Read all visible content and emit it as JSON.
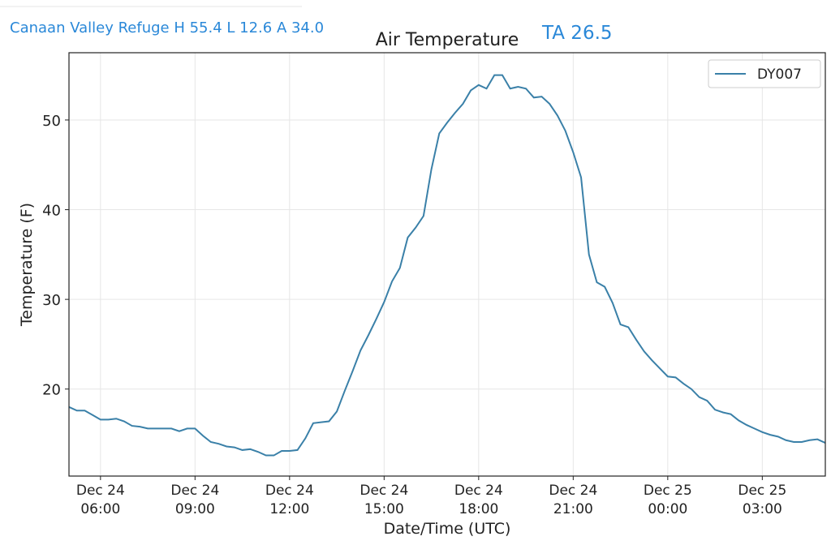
{
  "header": {
    "station": "Canaan Valley Refuge H 55.4 L 12.6 A 34.0"
  },
  "chart_data": {
    "type": "line",
    "title": "Air Temperature",
    "annotation": "TA 26.5",
    "x_label": "Date/Time (UTC)",
    "y_label": "Temperature (F)",
    "x": [
      "Dec 24 05:00",
      "Dec 24 05:15",
      "Dec 24 05:30",
      "Dec 24 05:45",
      "Dec 24 06:00",
      "Dec 24 06:15",
      "Dec 24 06:30",
      "Dec 24 06:45",
      "Dec 24 07:00",
      "Dec 24 07:15",
      "Dec 24 07:30",
      "Dec 24 07:45",
      "Dec 24 08:00",
      "Dec 24 08:15",
      "Dec 24 08:30",
      "Dec 24 08:45",
      "Dec 24 09:00",
      "Dec 24 09:15",
      "Dec 24 09:30",
      "Dec 24 09:45",
      "Dec 24 10:00",
      "Dec 24 10:15",
      "Dec 24 10:30",
      "Dec 24 10:45",
      "Dec 24 11:00",
      "Dec 24 11:15",
      "Dec 24 11:30",
      "Dec 24 11:45",
      "Dec 24 12:00",
      "Dec 24 12:15",
      "Dec 24 12:30",
      "Dec 24 12:45",
      "Dec 24 13:00",
      "Dec 24 13:15",
      "Dec 24 13:30",
      "Dec 24 13:45",
      "Dec 24 14:00",
      "Dec 24 14:15",
      "Dec 24 14:30",
      "Dec 24 14:45",
      "Dec 24 15:00",
      "Dec 24 15:15",
      "Dec 24 15:30",
      "Dec 24 15:45",
      "Dec 24 16:00",
      "Dec 24 16:15",
      "Dec 24 16:30",
      "Dec 24 16:45",
      "Dec 24 17:00",
      "Dec 24 17:15",
      "Dec 24 17:30",
      "Dec 24 17:45",
      "Dec 24 18:00",
      "Dec 24 18:15",
      "Dec 24 18:30",
      "Dec 24 18:45",
      "Dec 24 19:00",
      "Dec 24 19:15",
      "Dec 24 19:30",
      "Dec 24 19:45",
      "Dec 24 20:00",
      "Dec 24 20:15",
      "Dec 24 20:30",
      "Dec 24 20:45",
      "Dec 24 21:00",
      "Dec 24 21:15",
      "Dec 24 21:30",
      "Dec 24 21:45",
      "Dec 24 22:00",
      "Dec 24 22:15",
      "Dec 24 22:30",
      "Dec 24 22:45",
      "Dec 24 23:00",
      "Dec 24 23:15",
      "Dec 24 23:30",
      "Dec 24 23:45",
      "Dec 25 00:00",
      "Dec 25 00:15",
      "Dec 25 00:30",
      "Dec 25 00:45",
      "Dec 25 01:00",
      "Dec 25 01:15",
      "Dec 25 01:30",
      "Dec 25 01:45",
      "Dec 25 02:00",
      "Dec 25 02:15",
      "Dec 25 02:30",
      "Dec 25 02:45",
      "Dec 25 03:00",
      "Dec 25 03:15",
      "Dec 25 03:30",
      "Dec 25 03:45",
      "Dec 25 04:00",
      "Dec 25 04:15",
      "Dec 25 04:30",
      "Dec 25 04:45",
      "Dec 25 05:00"
    ],
    "series": [
      {
        "name": "DY007",
        "color": "#3a80a8",
        "values": [
          18.0,
          17.6,
          17.6,
          17.1,
          16.6,
          16.6,
          16.7,
          16.4,
          15.9,
          15.8,
          15.6,
          15.6,
          15.6,
          15.6,
          15.3,
          15.6,
          15.6,
          14.8,
          14.1,
          13.9,
          13.6,
          13.5,
          13.2,
          13.3,
          13.0,
          12.6,
          12.6,
          13.1,
          13.1,
          13.2,
          14.5,
          16.2,
          16.3,
          16.4,
          17.5,
          19.8,
          22.0,
          24.3,
          26.0,
          27.8,
          29.7,
          32.0,
          33.5,
          36.9,
          38.0,
          39.3,
          44.5,
          48.5,
          49.7,
          50.8,
          51.8,
          53.3,
          53.9,
          53.5,
          55.0,
          55.0,
          53.5,
          53.7,
          53.5,
          52.5,
          52.6,
          51.8,
          50.5,
          48.8,
          46.4,
          43.6,
          35.0,
          31.9,
          31.4,
          29.6,
          27.2,
          26.9,
          25.5,
          24.2,
          23.2,
          22.3,
          21.4,
          21.3,
          20.6,
          20.0,
          19.1,
          18.7,
          17.7,
          17.4,
          17.2,
          16.5,
          16.0,
          15.6,
          15.2,
          14.9,
          14.7,
          14.3,
          14.1,
          14.1,
          14.3,
          14.4,
          14.0
        ]
      }
    ],
    "xlim": [
      "Dec 24 05:00",
      "Dec 25 05:00"
    ],
    "xticks": [
      "Dec 24 06:00",
      "Dec 24 09:00",
      "Dec 24 12:00",
      "Dec 24 15:00",
      "Dec 24 18:00",
      "Dec 24 21:00",
      "Dec 25 00:00",
      "Dec 25 03:00"
    ],
    "ylim": [
      10.3,
      57.5
    ],
    "yticks": [
      20,
      30,
      40,
      50
    ],
    "grid": true,
    "legend": "upper right"
  }
}
